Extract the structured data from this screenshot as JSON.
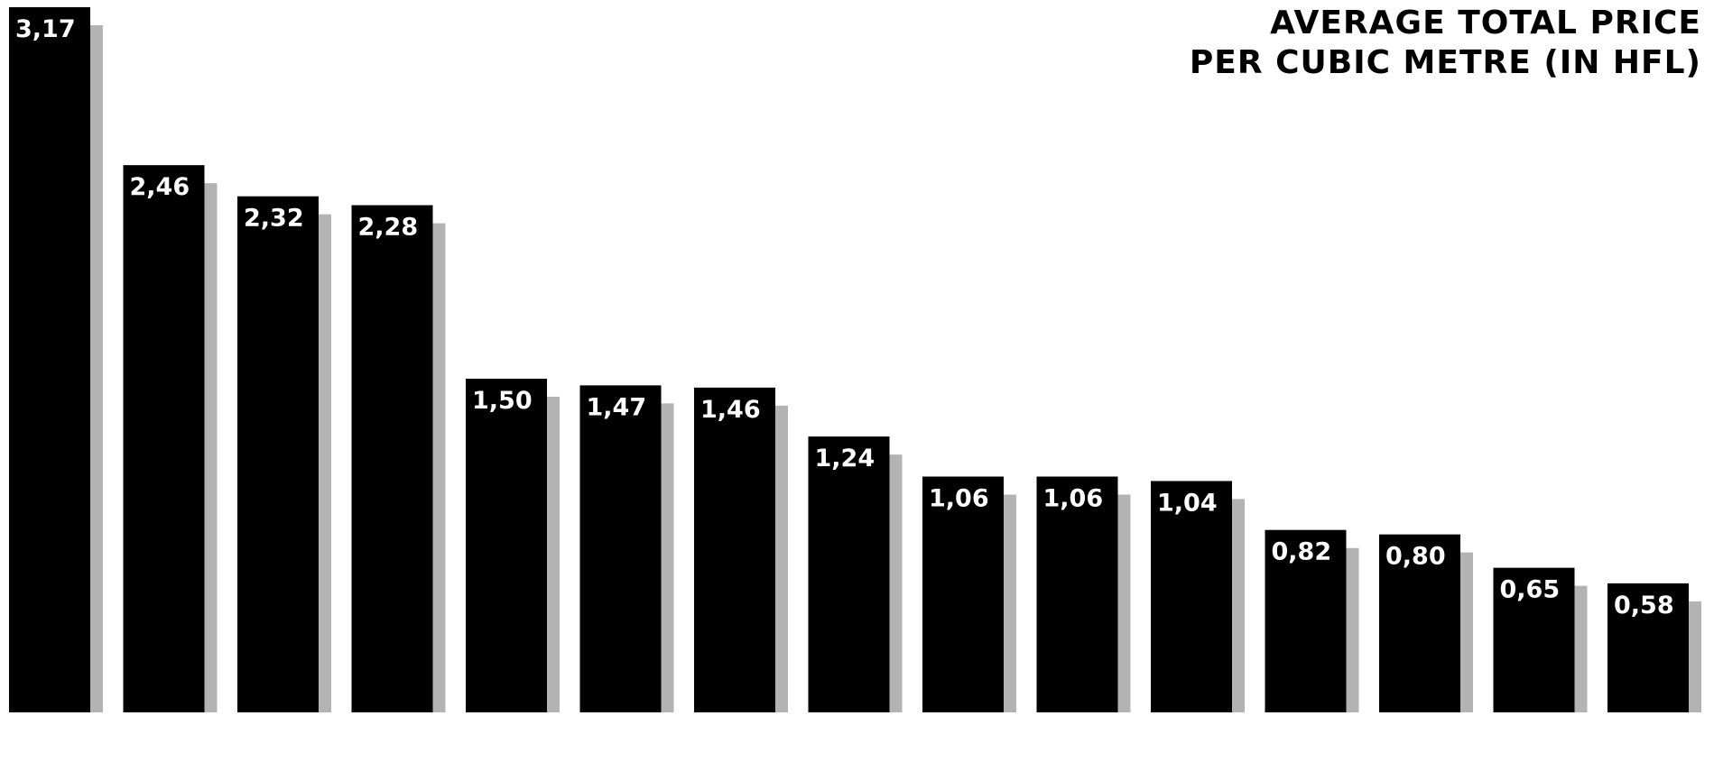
{
  "title": {
    "line1": "AVERAGE TOTAL PRICE",
    "line2": "PER CUBIC METRE (IN HFL)"
  },
  "chart_data": {
    "type": "bar",
    "title": "AVERAGE TOTAL PRICE PER CUBIC METRE (IN HFL)",
    "xlabel": "",
    "ylabel": "",
    "ylim": [
      0,
      3.2
    ],
    "grid": false,
    "legend": "none",
    "categories": [
      "",
      "",
      "",
      "",
      "",
      "",
      "",
      "",
      "",
      "",
      "",
      "",
      "",
      "",
      ""
    ],
    "values": [
      3.17,
      2.46,
      2.32,
      2.28,
      1.5,
      1.47,
      1.46,
      1.24,
      1.06,
      1.06,
      1.04,
      0.82,
      0.8,
      0.65,
      0.58
    ],
    "value_labels": [
      "3,17",
      "2,46",
      "2,32",
      "2,28",
      "1,50",
      "1,47",
      "1,46",
      "1,24",
      "1,06",
      "1,06",
      "1,04",
      "0,82",
      "0,80",
      "0,65",
      "0,58"
    ],
    "bar_color": "#000000",
    "shadow_color": "#9a9a9a",
    "label_color": "#ffffff"
  }
}
